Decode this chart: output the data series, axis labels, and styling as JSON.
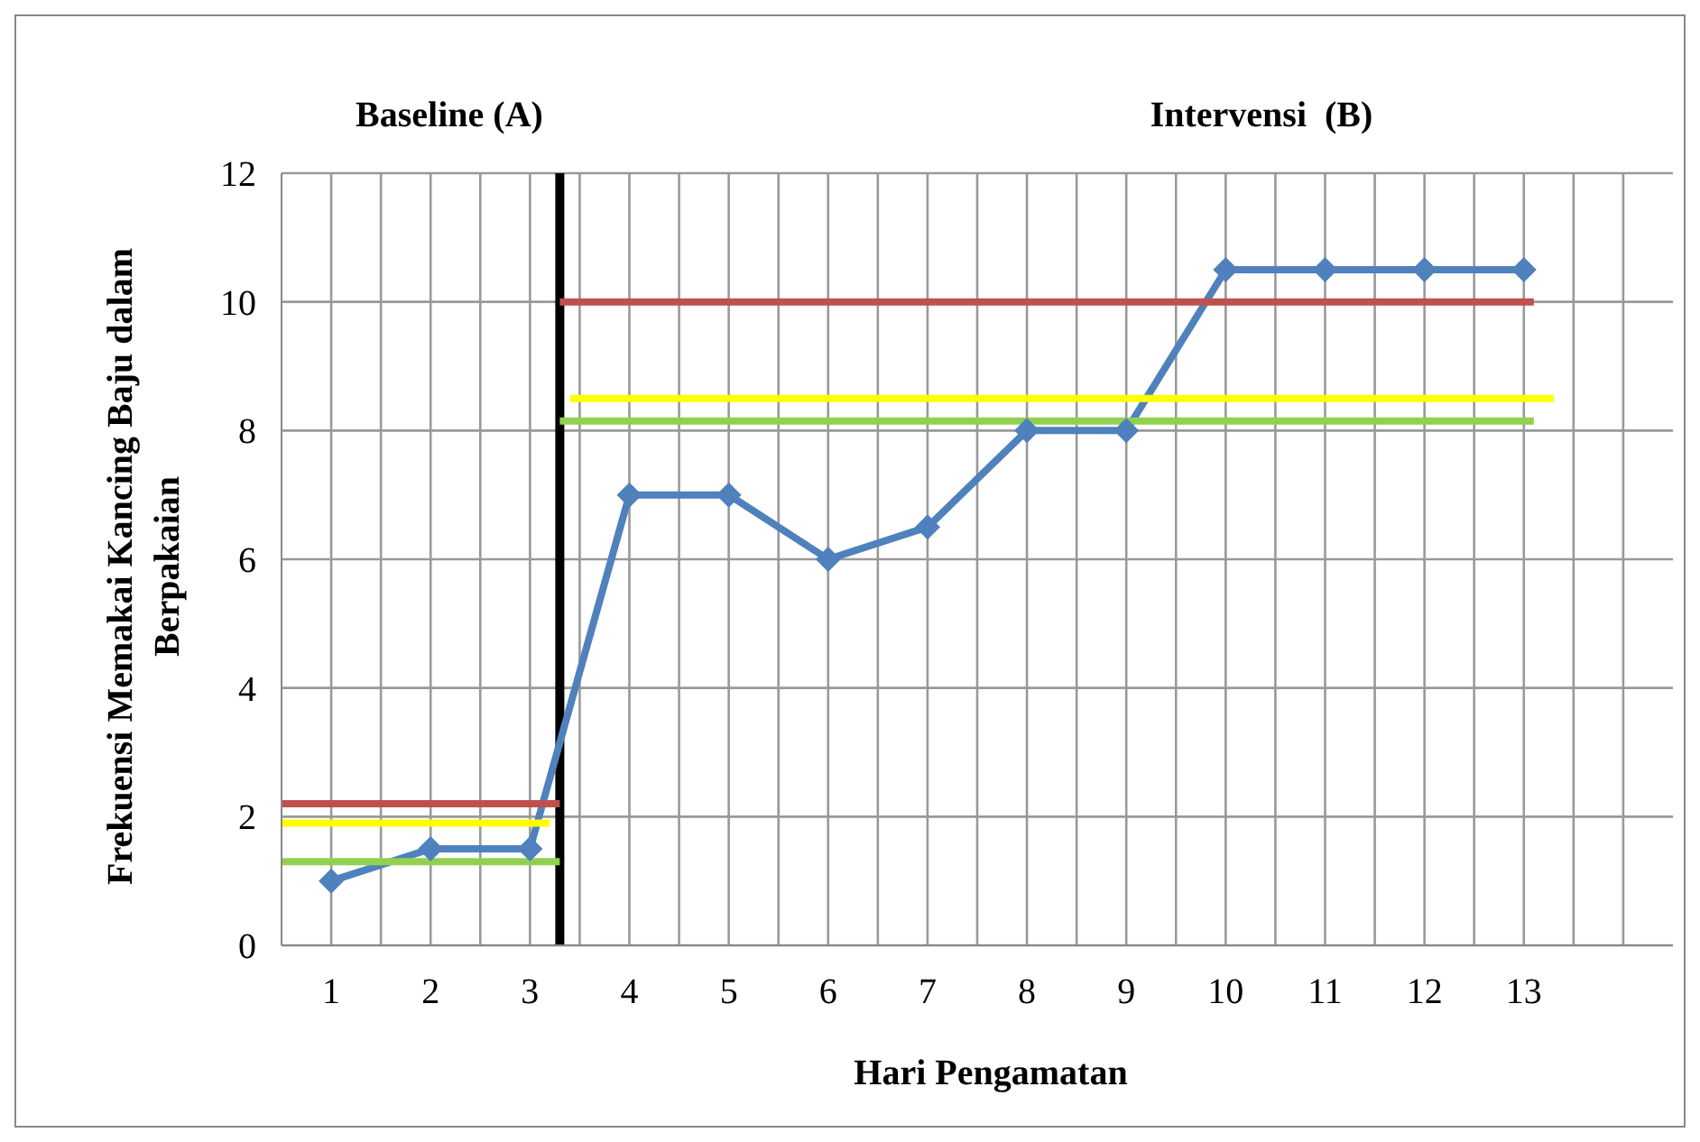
{
  "chart_data": {
    "type": "line",
    "xlabel": "Hari Pengamatan",
    "ylabel": "Frekuensi Memakai  Kancing  Baju dalam Berpakaian",
    "annotations": [
      "Baseline (A)",
      "Intervensi  (B)"
    ],
    "xlim": [
      0.5,
      14.5
    ],
    "xticks": [
      1,
      {
        "value": 1.5,
        "label": null
      },
      2,
      {
        "value": 2.5,
        "label": null
      },
      3,
      {
        "value": 3.5,
        "label": null
      },
      4,
      {
        "value": 4.5,
        "label": null
      },
      5,
      {
        "value": 5.5,
        "label": null
      },
      6,
      {
        "value": 6.5,
        "label": null
      },
      7,
      {
        "value": 7.5,
        "label": null
      },
      8,
      {
        "value": 8.5,
        "label": null
      },
      9,
      {
        "value": 9.5,
        "label": null
      },
      10,
      {
        "value": 10.5,
        "label": null
      },
      11,
      {
        "value": 11.5,
        "label": null
      },
      12,
      {
        "value": 12.5,
        "label": null
      },
      13,
      {
        "value": 13.5,
        "label": null
      },
      {
        "value": 14,
        "label": null
      }
    ],
    "ylim": [
      0,
      12
    ],
    "yticks": [
      0,
      2,
      4,
      6,
      8,
      10,
      12
    ],
    "grid": true,
    "legend": false,
    "marker": "diamond",
    "line_style": "solid",
    "series": [
      {
        "color": "#4f81bd",
        "x": [
          1,
          2,
          3,
          4,
          5,
          6,
          7,
          8,
          9,
          10,
          11,
          12,
          13
        ],
        "values": [
          1,
          1.5,
          1.5,
          7,
          7,
          6,
          6.5,
          8,
          8,
          10.5,
          10.5,
          10.5,
          10.5
        ]
      },
      {
        "color": "#c0504d",
        "marker": "none",
        "x": [
          0.5,
          3.3
        ],
        "values": [
          2.2,
          2.2
        ]
      },
      {
        "color": "#ffff00",
        "marker": "none",
        "x": [
          0.5,
          3.2
        ],
        "values": [
          1.9,
          1.9
        ]
      },
      {
        "color": "#92d050",
        "marker": "none",
        "x": [
          0.5,
          3.3
        ],
        "values": [
          1.3,
          1.3
        ]
      },
      {
        "color": "#c0504d",
        "marker": "none",
        "x": [
          3.3,
          13.1
        ],
        "values": [
          10,
          10
        ]
      },
      {
        "color": "#ffff00",
        "marker": "none",
        "x": [
          3.4,
          13.3
        ],
        "values": [
          8.5,
          8.5
        ]
      },
      {
        "color": "#92d050",
        "marker": "none",
        "x": [
          3.3,
          13.1
        ],
        "values": [
          8.15,
          8.15
        ]
      }
    ],
    "ref_lines": [
      {
        "axis": "x",
        "value": 3.3,
        "color": "#000000"
      }
    ]
  }
}
